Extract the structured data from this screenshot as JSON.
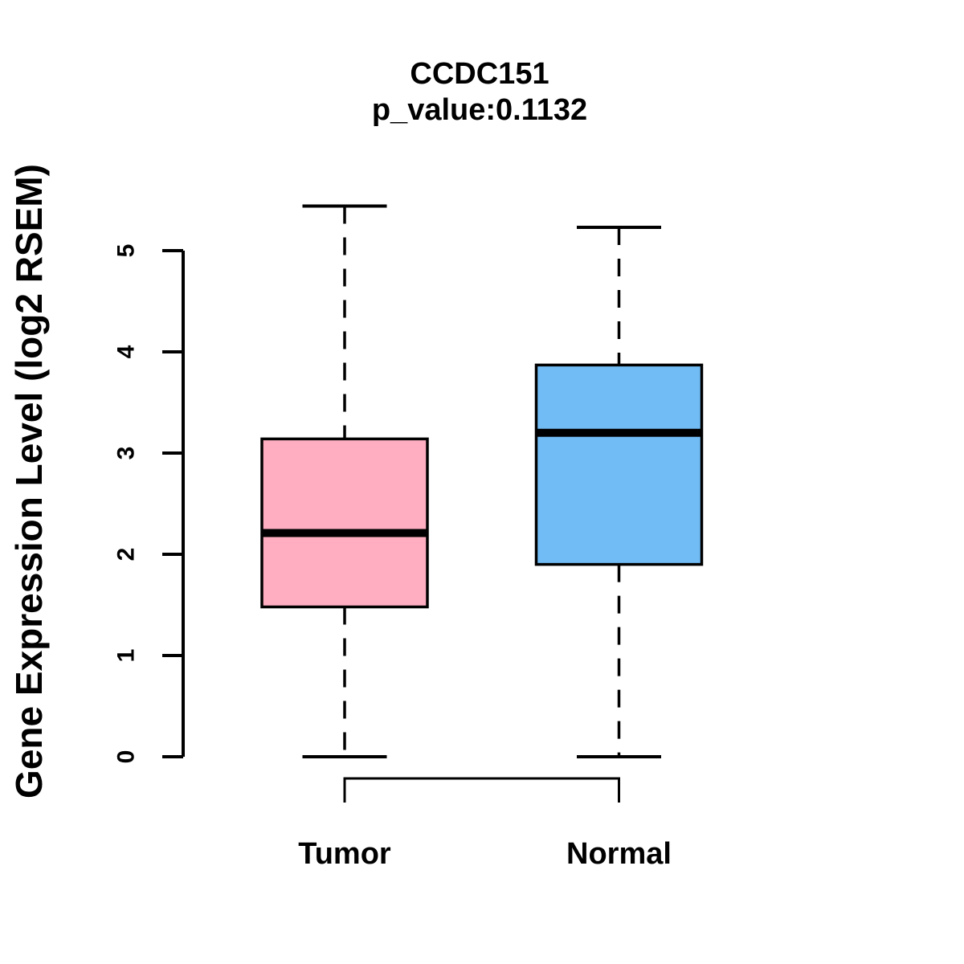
{
  "figure": {
    "background": "#FFFFFF",
    "text_color": "#000000"
  },
  "chart_data": {
    "type": "boxplot",
    "title": "CCDC151",
    "subtitle": "p_value:0.1132",
    "ylabel": "Gene Expression Level (log2 RSEM)",
    "xlabel": "",
    "ylim": [
      0,
      5.6
    ],
    "yticks": [
      "0",
      "1",
      "2",
      "3",
      "4",
      "5"
    ],
    "grid": false,
    "legend": "none",
    "categories": [
      "Tumor",
      "Normal"
    ],
    "series": [
      {
        "name": "Tumor",
        "color": "#FFAEC1",
        "whisker_low": 0,
        "q1": 1.48,
        "median": 2.21,
        "q3": 3.14,
        "whisker_high": 5.44
      },
      {
        "name": "Normal",
        "color": "#72BCF5",
        "whisker_low": 0,
        "q1": 1.9,
        "median": 3.2,
        "q3": 3.87,
        "whisker_high": 5.23
      }
    ],
    "comparison_bracket": {
      "from": "Tumor",
      "to": "Normal"
    },
    "line_color": "#000000"
  }
}
